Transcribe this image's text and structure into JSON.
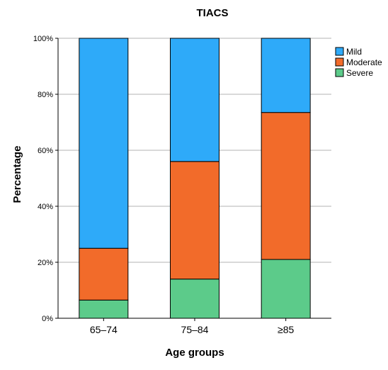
{
  "chart_data": {
    "type": "bar",
    "stacked": true,
    "title": "TIACS",
    "xlabel": "Age groups",
    "ylabel": "Percentage",
    "categories": [
      "65–74",
      "75–84",
      "≥85"
    ],
    "ylim": [
      0,
      100
    ],
    "yticks": [
      0,
      20,
      40,
      60,
      80,
      100
    ],
    "ytick_labels": [
      "0%",
      "20%",
      "40%",
      "60%",
      "80%",
      "100%"
    ],
    "grid": true,
    "legend_position": "top-right",
    "series": [
      {
        "name": "Severe",
        "color": "#5ccb8a",
        "values": [
          6.5,
          14,
          21
        ]
      },
      {
        "name": "Moderate",
        "color": "#f26b2a",
        "values": [
          18.5,
          42,
          52.5
        ]
      },
      {
        "name": "Mild",
        "color": "#2eaaf9",
        "values": [
          75,
          44,
          26.5
        ]
      }
    ],
    "legend_order": [
      "Mild",
      "Moderate",
      "Severe"
    ]
  }
}
